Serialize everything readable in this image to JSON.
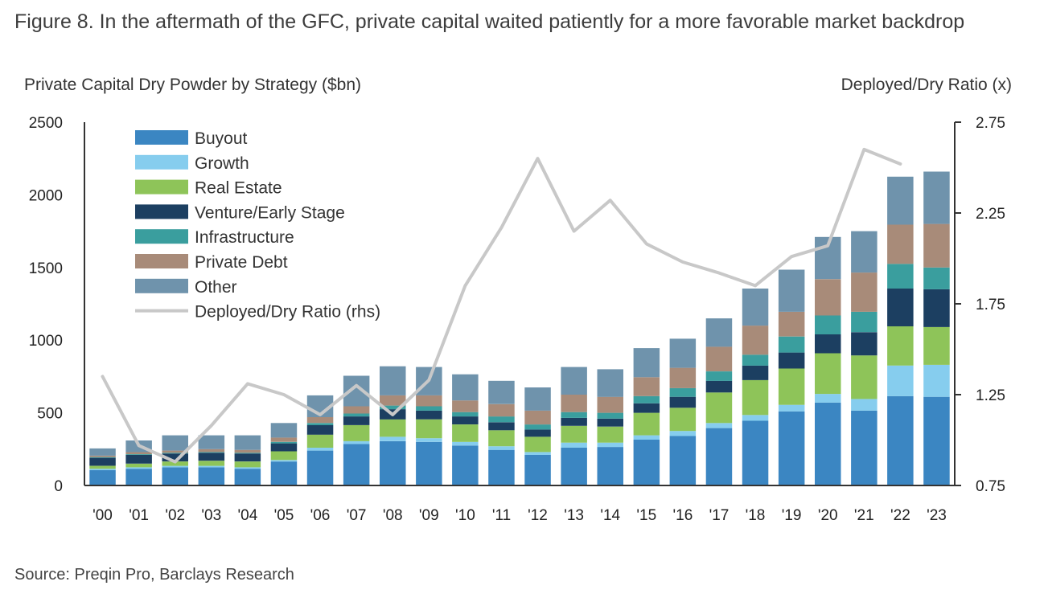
{
  "figure": {
    "title": "Figure 8. In the aftermath of the GFC, private capital waited patiently for a more favorable market backdrop",
    "source": "Source: Preqin Pro, Barclays Research"
  },
  "chart_data": {
    "type": "bar",
    "stacked": true,
    "ylabel": "Private Capital Dry Powder by Strategy ($bn)",
    "y2label": "Deployed/Dry Ratio (x)",
    "ylim": [
      0,
      2500
    ],
    "yticks": [
      0,
      500,
      1000,
      1500,
      2000,
      2500
    ],
    "y2lim": [
      0.75,
      2.75
    ],
    "y2ticks": [
      "0.75",
      "1.25",
      "1.75",
      "2.25",
      "2.75"
    ],
    "legend_position": "top-left",
    "grid": false,
    "categories": [
      "'00",
      "'01",
      "'02",
      "'03",
      "'04",
      "'05",
      "'06",
      "'07",
      "'08",
      "'09",
      "'10",
      "'11",
      "'12",
      "'13",
      "'14",
      "'15",
      "'16",
      "'17",
      "'18",
      "'19",
      "'20",
      "'21",
      "'22",
      "'23"
    ],
    "series": [
      {
        "name": "Buyout",
        "color": "#3b86c2",
        "values": [
          105,
          115,
          125,
          125,
          115,
          165,
          240,
          285,
          305,
          300,
          275,
          245,
          210,
          260,
          265,
          315,
          340,
          395,
          445,
          510,
          570,
          515,
          615,
          610
        ]
      },
      {
        "name": "Growth",
        "color": "#86cdee",
        "values": [
          10,
          10,
          10,
          10,
          10,
          10,
          20,
          20,
          30,
          25,
          25,
          25,
          20,
          35,
          30,
          30,
          35,
          35,
          40,
          45,
          60,
          80,
          210,
          220
        ]
      },
      {
        "name": "Real Estate",
        "color": "#8ec459",
        "values": [
          20,
          25,
          30,
          35,
          40,
          60,
          90,
          110,
          120,
          130,
          120,
          110,
          105,
          115,
          110,
          155,
          160,
          210,
          240,
          250,
          280,
          300,
          270,
          260
        ]
      },
      {
        "name": "Venture/Early Stage",
        "color": "#1c3f61",
        "values": [
          55,
          60,
          55,
          55,
          55,
          55,
          65,
          60,
          70,
          60,
          55,
          55,
          50,
          55,
          55,
          65,
          75,
          80,
          100,
          110,
          130,
          160,
          260,
          260
        ]
      },
      {
        "name": "Infrastructure",
        "color": "#3a9e9e",
        "values": [
          5,
          5,
          5,
          5,
          5,
          10,
          15,
          20,
          25,
          30,
          30,
          40,
          35,
          40,
          40,
          50,
          60,
          65,
          75,
          110,
          130,
          140,
          170,
          150
        ]
      },
      {
        "name": "Private Debt",
        "color": "#a88b79",
        "values": [
          10,
          15,
          15,
          20,
          20,
          30,
          40,
          50,
          70,
          75,
          80,
          85,
          95,
          120,
          110,
          130,
          140,
          170,
          200,
          170,
          250,
          270,
          270,
          300
        ]
      },
      {
        "name": "Other",
        "color": "#6f93ac",
        "values": [
          50,
          80,
          105,
          95,
          100,
          100,
          150,
          210,
          200,
          195,
          180,
          160,
          160,
          190,
          190,
          200,
          200,
          195,
          255,
          290,
          290,
          285,
          330,
          360
        ]
      }
    ],
    "line_series": {
      "name": "Deployed/Dry Ratio (rhs)",
      "color": "#c8c8c8",
      "values": [
        1.35,
        0.97,
        0.88,
        1.08,
        1.31,
        1.25,
        1.14,
        1.3,
        1.14,
        1.33,
        1.85,
        2.17,
        2.55,
        2.15,
        2.32,
        2.08,
        1.98,
        1.92,
        1.85,
        2.01,
        2.07,
        2.6,
        2.52,
        null
      ]
    }
  }
}
